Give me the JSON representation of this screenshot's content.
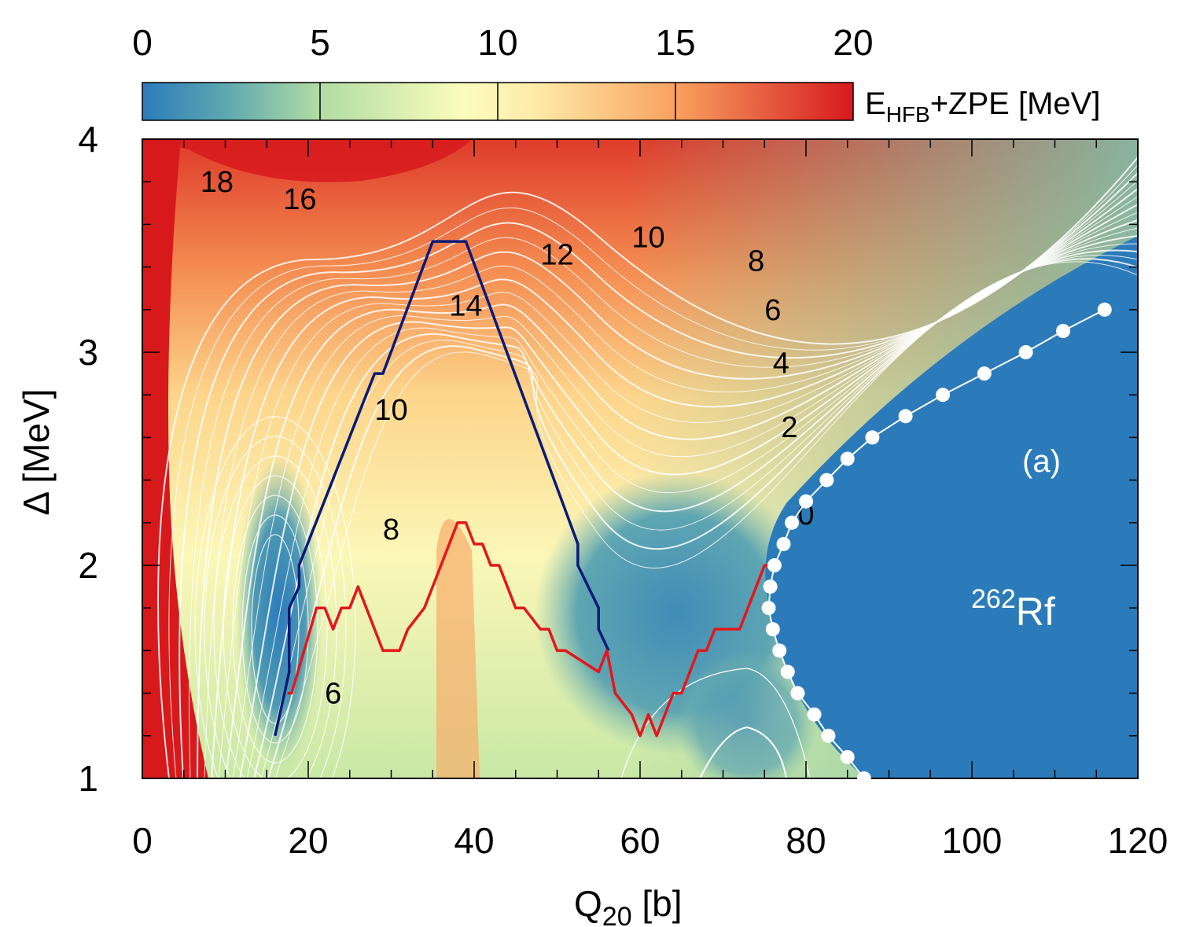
{
  "chart_data": {
    "type": "heatmap",
    "xlabel_main": "Q",
    "xlabel_sub": "20",
    "xlabel_unit": " [b]",
    "ylabel": "Δ [MeV]",
    "xlim": [
      0,
      120
    ],
    "ylim": [
      1,
      4
    ],
    "xticks": [
      0,
      20,
      40,
      60,
      80,
      100,
      120
    ],
    "yticks": [
      1,
      2,
      3,
      4
    ],
    "colorbar": {
      "title_main": "E",
      "title_sub": "HFB",
      "title_rest": "+ZPE [MeV]",
      "range": [
        0,
        20
      ],
      "ticks": [
        0,
        5,
        10,
        15,
        20
      ],
      "colors": [
        "#2b7bba",
        "#6fb3ae",
        "#b9e0a5",
        "#ffffbf",
        "#fdc57d",
        "#f58a52",
        "#d7191c"
      ]
    },
    "contour_labels": [
      {
        "text": "18",
        "x": 9,
        "y": 3.8
      },
      {
        "text": "16",
        "x": 19,
        "y": 3.72
      },
      {
        "text": "14",
        "x": 39,
        "y": 3.22
      },
      {
        "text": "12",
        "x": 50,
        "y": 3.46
      },
      {
        "text": "10",
        "x": 61,
        "y": 3.54
      },
      {
        "text": "8",
        "x": 74,
        "y": 3.43
      },
      {
        "text": "6",
        "x": 76,
        "y": 3.2
      },
      {
        "text": "4",
        "x": 77,
        "y": 2.95
      },
      {
        "text": "2",
        "x": 78,
        "y": 2.65
      },
      {
        "text": "0",
        "x": 80,
        "y": 2.24
      },
      {
        "text": "10",
        "x": 30,
        "y": 2.73
      },
      {
        "text": "8",
        "x": 30,
        "y": 2.17
      },
      {
        "text": "6",
        "x": 23,
        "y": 1.4
      }
    ],
    "series": [
      {
        "color": "#0a1a78",
        "x": [
          16,
          17.7,
          17.7,
          18.9,
          18.9,
          28,
          29,
          35,
          39,
          52.5,
          52.5,
          55,
          55,
          56.2
        ],
        "y": [
          1.2,
          1.5,
          1.8,
          1.9,
          2.0,
          2.9,
          2.9,
          3.52,
          3.52,
          2.1,
          2.0,
          1.8,
          1.7,
          1.6
        ]
      },
      {
        "color": "#e4161b",
        "x": [
          17.5,
          18,
          21,
          22,
          23,
          24,
          25,
          26,
          27,
          29,
          31,
          32,
          34,
          36,
          38,
          39,
          40,
          41,
          42,
          43,
          45,
          46,
          48,
          49,
          50,
          51,
          55,
          56,
          57,
          59,
          60,
          61,
          62,
          63,
          64,
          65,
          66,
          67,
          68,
          69,
          70,
          71,
          72,
          73,
          74,
          75,
          76.5
        ],
        "y": [
          1.4,
          1.4,
          1.8,
          1.8,
          1.7,
          1.8,
          1.8,
          1.9,
          1.8,
          1.6,
          1.6,
          1.7,
          1.8,
          2.0,
          2.2,
          2.2,
          2.1,
          2.1,
          2.0,
          2.0,
          1.8,
          1.8,
          1.7,
          1.7,
          1.6,
          1.6,
          1.5,
          1.6,
          1.4,
          1.3,
          1.2,
          1.3,
          1.2,
          1.3,
          1.4,
          1.4,
          1.5,
          1.6,
          1.6,
          1.7,
          1.7,
          1.7,
          1.7,
          1.8,
          1.9,
          2.0,
          2.0
        ]
      },
      {
        "color": "#ffffff",
        "marker": "circle",
        "x": [
          87,
          85,
          82.7,
          81,
          79,
          77.8,
          76.8,
          76,
          75.5,
          75.7,
          76.2,
          77.3,
          78.3,
          80,
          82.5,
          85,
          88,
          92,
          96.5,
          101.5,
          106.5,
          111,
          116
        ],
        "y": [
          1.0,
          1.1,
          1.2,
          1.3,
          1.4,
          1.5,
          1.6,
          1.7,
          1.8,
          1.9,
          2.0,
          2.1,
          2.2,
          2.3,
          2.4,
          2.5,
          2.6,
          2.7,
          2.8,
          2.9,
          3.0,
          3.1,
          3.2
        ]
      }
    ]
  },
  "panel_label": "(a)",
  "nucleus_mass": "262",
  "nucleus_symbol": "Rf"
}
